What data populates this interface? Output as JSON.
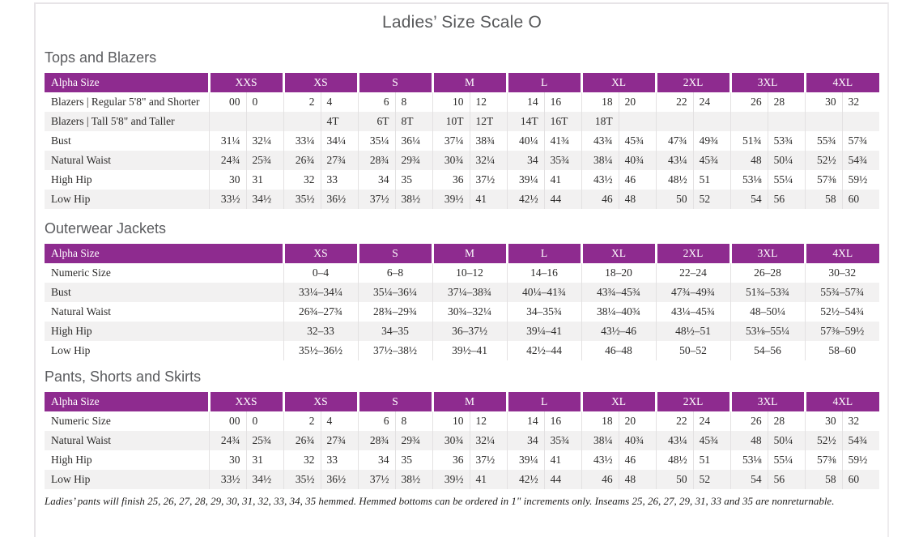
{
  "page": {
    "title": "Ladies’ Size Scale O",
    "footnote": "Ladies’ pants will finish 25, 26, 27, 28, 29, 30, 31, 32, 33, 34, 35 hemmed. Hemmed bottoms can be ordered in 1\" increments only. Inseams 25, 26, 27, 29, 31, 33 and 35 are nonreturnable."
  },
  "colors": {
    "header_purple": "#8e2b8f",
    "row_stripe": "#f2f1f1",
    "grid_line": "#e3e1e2",
    "heading_gray": "#5a5b5e"
  },
  "tables": [
    {
      "id": "tops",
      "section_title": "Tops and Blazers",
      "label_header": "Alpha Size",
      "pair_columns": true,
      "groups": [
        "XXS",
        "XS",
        "S",
        "M",
        "L",
        "XL",
        "2XL",
        "3XL",
        "4XL"
      ],
      "rows": [
        {
          "label": "Blazers  |  Regular 5'8\" and Shorter",
          "values": [
            [
              "00",
              "0"
            ],
            [
              "2",
              "4"
            ],
            [
              "6",
              "8"
            ],
            [
              "10",
              "12"
            ],
            [
              "14",
              "16"
            ],
            [
              "18",
              "20"
            ],
            [
              "22",
              "24"
            ],
            [
              "26",
              "28"
            ],
            [
              "30",
              "32"
            ]
          ]
        },
        {
          "label": "Blazers  |  Tall 5'8\" and Taller",
          "values": [
            [
              "",
              ""
            ],
            [
              "",
              "4T"
            ],
            [
              "6T",
              "8T"
            ],
            [
              "10T",
              "12T"
            ],
            [
              "14T",
              "16T"
            ],
            [
              "18T",
              ""
            ],
            [
              "",
              ""
            ],
            [
              "",
              ""
            ],
            [
              "",
              ""
            ]
          ]
        },
        {
          "label": "Bust",
          "values": [
            [
              "31¼",
              "32¼"
            ],
            [
              "33¼",
              "34¼"
            ],
            [
              "35¼",
              "36¼"
            ],
            [
              "37¼",
              "38¾"
            ],
            [
              "40¼",
              "41¾"
            ],
            [
              "43¾",
              "45¾"
            ],
            [
              "47¾",
              "49¾"
            ],
            [
              "51¾",
              "53¾"
            ],
            [
              "55¾",
              "57¾"
            ]
          ]
        },
        {
          "label": "Natural Waist",
          "values": [
            [
              "24¾",
              "25¾"
            ],
            [
              "26¾",
              "27¾"
            ],
            [
              "28¾",
              "29¾"
            ],
            [
              "30¾",
              "32¼"
            ],
            [
              "34",
              "35¾"
            ],
            [
              "38¼",
              "40¾"
            ],
            [
              "43¼",
              "45¾"
            ],
            [
              "48",
              "50¼"
            ],
            [
              "52½",
              "54¾"
            ]
          ]
        },
        {
          "label": "High Hip",
          "values": [
            [
              "30",
              "31"
            ],
            [
              "32",
              "33"
            ],
            [
              "34",
              "35"
            ],
            [
              "36",
              "37½"
            ],
            [
              "39¼",
              "41"
            ],
            [
              "43½",
              "46"
            ],
            [
              "48½",
              "51"
            ],
            [
              "53⅛",
              "55¼"
            ],
            [
              "57⅜",
              "59½"
            ]
          ]
        },
        {
          "label": "Low Hip",
          "values": [
            [
              "33½",
              "34½"
            ],
            [
              "35½",
              "36½"
            ],
            [
              "37½",
              "38½"
            ],
            [
              "39½",
              "41"
            ],
            [
              "42½",
              "44"
            ],
            [
              "46",
              "48"
            ],
            [
              "50",
              "52"
            ],
            [
              "54",
              "56"
            ],
            [
              "58",
              "60"
            ]
          ]
        }
      ]
    },
    {
      "id": "outerwear",
      "section_title": "Outerwear Jackets",
      "label_header": "Alpha Size",
      "pair_columns": false,
      "groups": [
        "XS",
        "S",
        "M",
        "L",
        "XL",
        "2XL",
        "3XL",
        "4XL"
      ],
      "rows": [
        {
          "label": "Numeric Size",
          "values": [
            "0–4",
            "6–8",
            "10–12",
            "14–16",
            "18–20",
            "22–24",
            "26–28",
            "30–32"
          ]
        },
        {
          "label": "Bust",
          "values": [
            "33¼–34¼",
            "35¼–36¼",
            "37¼–38¾",
            "40¼–41¾",
            "43¾–45¾",
            "47¾–49¾",
            "51¾–53¾",
            "55¾–57¾"
          ]
        },
        {
          "label": "Natural Waist",
          "values": [
            "26¾–27¾",
            "28¾–29¾",
            "30¾–32¼",
            "34–35¾",
            "38¼–40¾",
            "43¼–45¾",
            "48–50¼",
            "52½–54¾"
          ]
        },
        {
          "label": "High Hip",
          "values": [
            "32–33",
            "34–35",
            "36–37½",
            "39¼–41",
            "43½–46",
            "48½–51",
            "53⅛–55¼",
            "57⅜–59½"
          ]
        },
        {
          "label": "Low Hip",
          "values": [
            "35½–36½",
            "37½–38½",
            "39½–41",
            "42½–44",
            "46–48",
            "50–52",
            "54–56",
            "58–60"
          ]
        }
      ]
    },
    {
      "id": "pants",
      "section_title": "Pants, Shorts and Skirts",
      "label_header": "Alpha Size",
      "pair_columns": true,
      "groups": [
        "XXS",
        "XS",
        "S",
        "M",
        "L",
        "XL",
        "2XL",
        "3XL",
        "4XL"
      ],
      "rows": [
        {
          "label": "Numeric Size",
          "values": [
            [
              "00",
              "0"
            ],
            [
              "2",
              "4"
            ],
            [
              "6",
              "8"
            ],
            [
              "10",
              "12"
            ],
            [
              "14",
              "16"
            ],
            [
              "18",
              "20"
            ],
            [
              "22",
              "24"
            ],
            [
              "26",
              "28"
            ],
            [
              "30",
              "32"
            ]
          ]
        },
        {
          "label": "Natural Waist",
          "values": [
            [
              "24¾",
              "25¾"
            ],
            [
              "26¾",
              "27¾"
            ],
            [
              "28¾",
              "29¾"
            ],
            [
              "30¾",
              "32¼"
            ],
            [
              "34",
              "35¾"
            ],
            [
              "38¼",
              "40¾"
            ],
            [
              "43¼",
              "45¾"
            ],
            [
              "48",
              "50¼"
            ],
            [
              "52½",
              "54¾"
            ]
          ]
        },
        {
          "label": "High Hip",
          "values": [
            [
              "30",
              "31"
            ],
            [
              "32",
              "33"
            ],
            [
              "34",
              "35"
            ],
            [
              "36",
              "37½"
            ],
            [
              "39¼",
              "41"
            ],
            [
              "43½",
              "46"
            ],
            [
              "48½",
              "51"
            ],
            [
              "53⅛",
              "55¼"
            ],
            [
              "57⅜",
              "59½"
            ]
          ]
        },
        {
          "label": "Low Hip",
          "values": [
            [
              "33½",
              "34½"
            ],
            [
              "35½",
              "36½"
            ],
            [
              "37½",
              "38½"
            ],
            [
              "39½",
              "41"
            ],
            [
              "42½",
              "44"
            ],
            [
              "46",
              "48"
            ],
            [
              "50",
              "52"
            ],
            [
              "54",
              "56"
            ],
            [
              "58",
              "60"
            ]
          ]
        }
      ]
    }
  ]
}
